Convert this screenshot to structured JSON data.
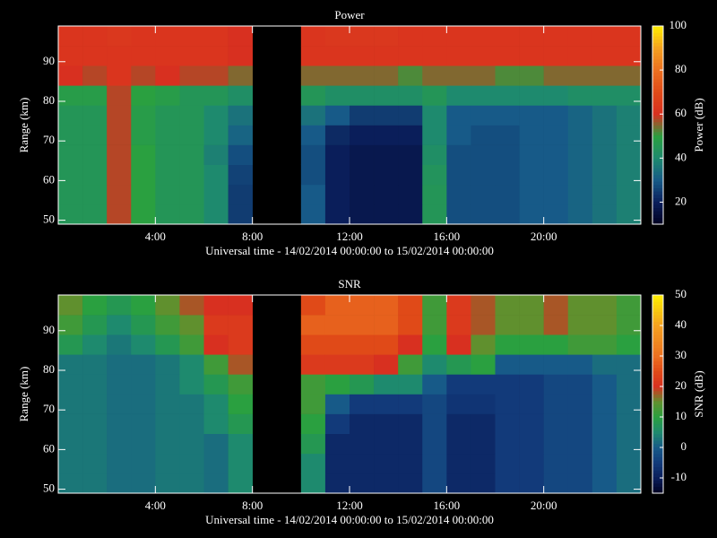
{
  "chart_data": [
    {
      "type": "heatmap",
      "title": "Power",
      "xlabel": "Universal time - 14/02/2014 00:00:00 to 15/02/2014 00:00:00",
      "ylabel": "Range (km)",
      "colorbar_label": "Power (dB)",
      "xbins": [
        0,
        1,
        2,
        3,
        4,
        5,
        6,
        7,
        8,
        9,
        10,
        11,
        12,
        13,
        14,
        15,
        16,
        17,
        18,
        19,
        20,
        21,
        22,
        23,
        24
      ],
      "ybins": [
        49,
        54,
        59,
        64,
        69,
        74,
        79,
        84,
        89,
        94,
        99
      ],
      "xlim": [
        0,
        24
      ],
      "ylim": [
        49,
        99
      ],
      "xticks": [
        {
          "value": 4,
          "label": "4:00"
        },
        {
          "value": 8,
          "label": "8:00"
        },
        {
          "value": 12,
          "label": "12:00"
        },
        {
          "value": 16,
          "label": "16:00"
        },
        {
          "value": 20,
          "label": "20:00"
        }
      ],
      "yticks": [
        50,
        60,
        70,
        80,
        90
      ],
      "clim": [
        10,
        100
      ],
      "cticks": [
        20,
        40,
        60,
        80,
        100
      ],
      "colorscale": [
        "#000020",
        "#0a1e5a",
        "#175a88",
        "#1e8a6e",
        "#2aa040",
        "#d83020",
        "#e04a18",
        "#ec7020",
        "#f4a020",
        "#ffee00"
      ],
      "values": [
        [
          45,
          45,
          58,
          50,
          45,
          45,
          40,
          25,
          null,
          null,
          30,
          20,
          18,
          18,
          18,
          45,
          28,
          28,
          28,
          30,
          30,
          32,
          35,
          38
        ],
        [
          45,
          45,
          58,
          50,
          45,
          45,
          40,
          25,
          null,
          null,
          30,
          20,
          18,
          18,
          18,
          45,
          28,
          28,
          28,
          30,
          30,
          32,
          35,
          38
        ],
        [
          45,
          45,
          58,
          50,
          45,
          45,
          40,
          26,
          null,
          null,
          28,
          20,
          18,
          18,
          18,
          44,
          28,
          28,
          28,
          30,
          30,
          32,
          35,
          38
        ],
        [
          45,
          45,
          58,
          50,
          45,
          45,
          38,
          28,
          null,
          null,
          28,
          20,
          18,
          18,
          18,
          42,
          28,
          28,
          28,
          30,
          30,
          32,
          35,
          38
        ],
        [
          45,
          45,
          58,
          48,
          45,
          45,
          40,
          32,
          null,
          null,
          30,
          22,
          20,
          20,
          20,
          40,
          30,
          28,
          28,
          30,
          30,
          32,
          35,
          38
        ],
        [
          45,
          45,
          58,
          48,
          45,
          45,
          40,
          35,
          null,
          null,
          35,
          30,
          25,
          25,
          25,
          40,
          30,
          30,
          30,
          30,
          30,
          32,
          35,
          38
        ],
        [
          48,
          48,
          58,
          50,
          48,
          45,
          45,
          42,
          null,
          null,
          45,
          42,
          42,
          42,
          42,
          45,
          40,
          40,
          40,
          40,
          40,
          42,
          42,
          42
        ],
        [
          60,
          58,
          62,
          58,
          60,
          58,
          58,
          55,
          null,
          null,
          55,
          55,
          55,
          55,
          52,
          55,
          55,
          55,
          52,
          52,
          55,
          55,
          55,
          55
        ],
        [
          62,
          62,
          62,
          62,
          62,
          62,
          62,
          60,
          null,
          null,
          62,
          62,
          62,
          62,
          62,
          62,
          62,
          62,
          62,
          62,
          62,
          62,
          62,
          62
        ],
        [
          62,
          62,
          63,
          62,
          62,
          62,
          62,
          60,
          null,
          null,
          62,
          63,
          63,
          63,
          62,
          62,
          62,
          62,
          62,
          62,
          62,
          62,
          62,
          62
        ]
      ]
    },
    {
      "type": "heatmap",
      "title": "SNR",
      "xlabel": "Universal time - 14/02/2014 00:00:00 to 15/02/2014 00:00:00",
      "ylabel": "Range (km)",
      "colorbar_label": "SNR (dB)",
      "xbins": [
        0,
        1,
        2,
        3,
        4,
        5,
        6,
        7,
        8,
        9,
        10,
        11,
        12,
        13,
        14,
        15,
        16,
        17,
        18,
        19,
        20,
        21,
        22,
        23,
        24
      ],
      "ybins": [
        49,
        54,
        59,
        64,
        69,
        74,
        79,
        84,
        89,
        94,
        99
      ],
      "xlim": [
        0,
        24
      ],
      "ylim": [
        49,
        99
      ],
      "xticks": [
        {
          "value": 4,
          "label": "4:00"
        },
        {
          "value": 8,
          "label": "8:00"
        },
        {
          "value": 12,
          "label": "12:00"
        },
        {
          "value": 16,
          "label": "16:00"
        },
        {
          "value": 20,
          "label": "20:00"
        }
      ],
      "yticks": [
        50,
        60,
        70,
        80,
        90
      ],
      "clim": [
        -15,
        50
      ],
      "cticks": [
        -10,
        0,
        10,
        20,
        30,
        40,
        50
      ],
      "colorscale": [
        "#000020",
        "#0a1e5a",
        "#123a7a",
        "#175a88",
        "#1e8a6e",
        "#2aa040",
        "#60902e",
        "#d83020",
        "#e04a18",
        "#ec7020",
        "#f08a20",
        "#f4a020",
        "#f8c810",
        "#ffee00"
      ],
      "values": [
        [
          3,
          3,
          2,
          2,
          3,
          3,
          2,
          5,
          null,
          null,
          5,
          -8,
          -8,
          -8,
          -8,
          -3,
          -8,
          -8,
          -5,
          -5,
          -3,
          -3,
          0,
          2
        ],
        [
          3,
          3,
          2,
          2,
          3,
          3,
          2,
          5,
          null,
          null,
          5,
          -8,
          -8,
          -8,
          -8,
          -3,
          -8,
          -8,
          -5,
          -5,
          -3,
          -3,
          0,
          2
        ],
        [
          3,
          3,
          2,
          2,
          3,
          3,
          2,
          5,
          null,
          null,
          8,
          -8,
          -8,
          -8,
          -8,
          -3,
          -8,
          -8,
          -5,
          -5,
          -3,
          -3,
          0,
          2
        ],
        [
          3,
          3,
          2,
          2,
          3,
          3,
          5,
          8,
          null,
          null,
          10,
          -5,
          -8,
          -8,
          -8,
          -3,
          -8,
          -8,
          -5,
          -5,
          -3,
          -3,
          0,
          2
        ],
        [
          3,
          3,
          2,
          2,
          3,
          3,
          5,
          10,
          null,
          null,
          12,
          0,
          -5,
          -5,
          -5,
          -3,
          -6,
          -6,
          -5,
          -5,
          -3,
          -3,
          0,
          2
        ],
        [
          3,
          3,
          2,
          2,
          3,
          5,
          8,
          12,
          null,
          null,
          12,
          10,
          8,
          5,
          5,
          0,
          -5,
          -5,
          -5,
          -5,
          -3,
          -3,
          0,
          2
        ],
        [
          3,
          3,
          2,
          2,
          3,
          5,
          12,
          18,
          null,
          null,
          22,
          22,
          22,
          20,
          12,
          5,
          8,
          10,
          0,
          0,
          0,
          0,
          2,
          2
        ],
        [
          8,
          5,
          3,
          5,
          8,
          12,
          20,
          22,
          null,
          null,
          25,
          25,
          25,
          25,
          20,
          10,
          20,
          15,
          10,
          10,
          10,
          12,
          12,
          10
        ],
        [
          12,
          8,
          5,
          8,
          12,
          15,
          22,
          22,
          null,
          null,
          28,
          28,
          28,
          28,
          25,
          12,
          22,
          18,
          15,
          15,
          18,
          15,
          15,
          12
        ],
        [
          15,
          10,
          8,
          10,
          15,
          18,
          20,
          20,
          null,
          null,
          25,
          28,
          28,
          28,
          25,
          12,
          22,
          18,
          15,
          15,
          18,
          15,
          15,
          12
        ]
      ]
    }
  ]
}
